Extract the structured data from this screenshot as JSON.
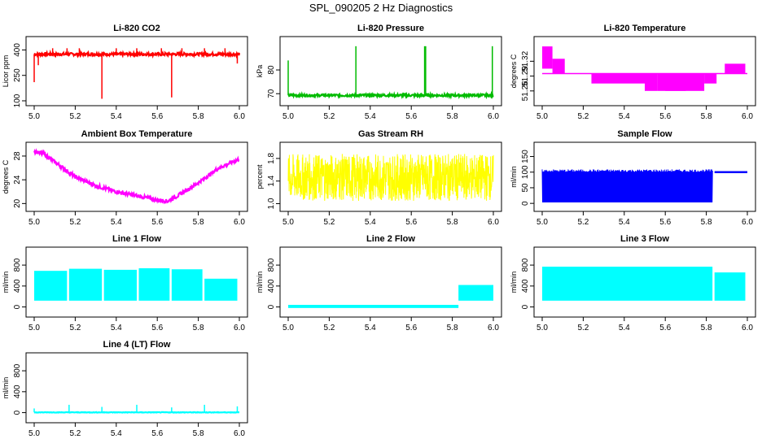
{
  "figure": {
    "title": "SPL_090205  2 Hz Diagnostics"
  },
  "chart_data": [
    {
      "type": "line",
      "title": "Li-820 CO2",
      "ylabel": "Licor ppm",
      "color": "#ff0000",
      "xlim": [
        5.0,
        6.0
      ],
      "ylim": [
        100,
        450
      ],
      "xticks": [
        "5.0",
        "5.2",
        "5.4",
        "5.6",
        "5.8",
        "6.0"
      ],
      "yticks": [
        {
          "v": 100,
          "label": "100"
        },
        {
          "v": 250,
          "label": "250"
        },
        {
          "v": 400,
          "label": "400"
        }
      ],
      "kind": "noise",
      "baseline": [
        [
          5.0,
          375
        ],
        [
          6.0,
          375
        ]
      ],
      "noise": 8,
      "spikes": [
        [
          5.0,
          210
        ],
        [
          5.02,
          310
        ],
        [
          5.09,
          410
        ],
        [
          5.16,
          410
        ],
        [
          5.22,
          410
        ],
        [
          5.33,
          112
        ],
        [
          5.4,
          410
        ],
        [
          5.5,
          410
        ],
        [
          5.62,
          410
        ],
        [
          5.67,
          120
        ],
        [
          5.72,
          410
        ],
        [
          5.83,
          410
        ],
        [
          5.93,
          410
        ],
        [
          5.99,
          320
        ]
      ]
    },
    {
      "type": "line",
      "title": "Li-820 Pressure",
      "ylabel": "kPa",
      "color": "#00bb00",
      "xlim": [
        5.0,
        6.0
      ],
      "ylim": [
        67,
        92
      ],
      "xticks": [
        "5.0",
        "5.2",
        "5.4",
        "5.6",
        "5.8",
        "6.0"
      ],
      "yticks": [
        {
          "v": 70,
          "label": "70"
        },
        {
          "v": 80,
          "label": "80"
        }
      ],
      "kind": "noise",
      "baseline": [
        [
          5.0,
          69.3
        ],
        [
          6.0,
          69.3
        ]
      ],
      "noise": 0.5,
      "spikes": [
        [
          5.0,
          84
        ],
        [
          5.33,
          90
        ],
        [
          5.665,
          90
        ],
        [
          5.67,
          90
        ],
        [
          5.995,
          90
        ]
      ]
    },
    {
      "type": "line",
      "title": "Li-820 Temperature",
      "ylabel": "degrees C",
      "color": "#ff00ff",
      "xlim": [
        5.0,
        6.0
      ],
      "ylim": [
        51.24,
        51.36
      ],
      "xticks": [
        "5.0",
        "5.2",
        "5.4",
        "5.6",
        "5.8",
        "6.0"
      ],
      "yticks": [
        {
          "v": 51.26,
          "label": "51.26"
        },
        {
          "v": 51.29,
          "label": "51.29"
        },
        {
          "v": 51.32,
          "label": "51.32"
        }
      ],
      "kind": "steps",
      "low": 51.295,
      "blocks": [
        [
          5.0,
          5.05,
          51.35,
          51.305
        ],
        [
          5.05,
          5.11,
          51.325,
          51.295
        ],
        [
          5.24,
          5.5,
          51.295,
          51.275
        ],
        [
          5.5,
          5.56,
          51.295,
          51.26
        ],
        [
          5.56,
          5.79,
          51.295,
          51.26
        ],
        [
          5.79,
          5.79,
          51.295,
          51.26
        ],
        [
          5.6,
          5.7,
          51.275,
          51.26
        ],
        [
          5.79,
          5.85,
          51.295,
          51.275
        ],
        [
          5.89,
          5.99,
          51.315,
          51.295
        ]
      ]
    },
    {
      "type": "line",
      "title": "Ambient Box Temperature",
      "ylabel": "degrees C",
      "color": "#ff00ff",
      "xlim": [
        5.0,
        6.0
      ],
      "ylim": [
        19.5,
        29.5
      ],
      "xticks": [
        "5.0",
        "5.2",
        "5.4",
        "5.6",
        "5.8",
        "6.0"
      ],
      "yticks": [
        {
          "v": 20,
          "label": "20"
        },
        {
          "v": 24,
          "label": "24"
        },
        {
          "v": 28,
          "label": "28"
        }
      ],
      "kind": "noise",
      "noise": 0.3,
      "baseline": [
        [
          5.0,
          28.8
        ],
        [
          5.05,
          28.3
        ],
        [
          5.1,
          27.0
        ],
        [
          5.2,
          24.5
        ],
        [
          5.3,
          23.0
        ],
        [
          5.4,
          22.0
        ],
        [
          5.5,
          21.3
        ],
        [
          5.6,
          20.6
        ],
        [
          5.65,
          20.4
        ],
        [
          5.7,
          21.3
        ],
        [
          5.8,
          23.5
        ],
        [
          5.9,
          26.0
        ],
        [
          6.0,
          27.5
        ]
      ]
    },
    {
      "type": "line",
      "title": "Gas Stream RH",
      "ylabel": "percent",
      "color": "#ffff00",
      "xlim": [
        5.0,
        6.0
      ],
      "ylim": [
        0.95,
        2.0
      ],
      "xticks": [
        "5.0",
        "5.2",
        "5.4",
        "5.6",
        "5.8",
        "6.0"
      ],
      "yticks": [
        {
          "v": 1.0,
          "label": "1.0"
        },
        {
          "v": 1.4,
          "label": "1.4"
        },
        {
          "v": 1.8,
          "label": "1.8"
        }
      ],
      "kind": "band",
      "low": 1.05,
      "high": 1.88
    },
    {
      "type": "line",
      "title": "Sample Flow",
      "ylabel": "ml/min",
      "color": "#0000ff",
      "xlim": [
        5.0,
        6.0
      ],
      "ylim": [
        -10,
        180
      ],
      "xticks": [
        "5.0",
        "5.2",
        "5.4",
        "5.6",
        "5.8",
        "6.0"
      ],
      "yticks": [
        {
          "v": 0,
          "label": "0"
        },
        {
          "v": 50,
          "label": "50"
        },
        {
          "v": 100,
          "label": "100"
        },
        {
          "v": 150,
          "label": "150"
        }
      ],
      "kind": "blocks",
      "upper": 105,
      "lower": 3,
      "block_end": 5.83,
      "tail": [
        [
          5.84,
          6.0,
          100
        ]
      ]
    },
    {
      "type": "line",
      "title": "Line 1 Flow",
      "ylabel": "ml/min",
      "color": "#00ffff",
      "xlim": [
        5.0,
        6.0
      ],
      "ylim": [
        -100,
        1050
      ],
      "xticks": [
        "5.0",
        "5.2",
        "5.4",
        "5.6",
        "5.8",
        "6.0"
      ],
      "yticks": [
        {
          "v": 0,
          "label": "0"
        },
        {
          "v": 400,
          "label": "400"
        },
        {
          "v": 800,
          "label": "800"
        }
      ],
      "kind": "segments",
      "lower": 120,
      "segments": [
        [
          5.0,
          5.16,
          690
        ],
        [
          5.17,
          5.33,
          730
        ],
        [
          5.34,
          5.5,
          710
        ],
        [
          5.51,
          5.66,
          740
        ],
        [
          5.67,
          5.82,
          720
        ],
        [
          5.83,
          5.99,
          540
        ]
      ]
    },
    {
      "type": "line",
      "title": "Line 2 Flow",
      "ylabel": "ml/min",
      "color": "#00ffff",
      "xlim": [
        5.0,
        6.0
      ],
      "ylim": [
        -100,
        1050
      ],
      "xticks": [
        "5.0",
        "5.2",
        "5.4",
        "5.6",
        "5.8",
        "6.0"
      ],
      "yticks": [
        {
          "v": 0,
          "label": "0"
        },
        {
          "v": 400,
          "label": "400"
        },
        {
          "v": 800,
          "label": "800"
        }
      ],
      "kind": "segments",
      "lower": -20,
      "segments": [
        [
          5.0,
          5.83,
          40
        ]
      ],
      "high": [
        [
          5.83,
          6.0,
          120,
          420
        ]
      ]
    },
    {
      "type": "line",
      "title": "Line 3 Flow",
      "ylabel": "ml/min",
      "color": "#00ffff",
      "xlim": [
        5.0,
        6.0
      ],
      "ylim": [
        -100,
        1050
      ],
      "xticks": [
        "5.0",
        "5.2",
        "5.4",
        "5.6",
        "5.8",
        "6.0"
      ],
      "yticks": [
        {
          "v": 0,
          "label": "0"
        },
        {
          "v": 400,
          "label": "400"
        },
        {
          "v": 800,
          "label": "800"
        }
      ],
      "kind": "segments",
      "lower": 120,
      "segments": [
        [
          5.0,
          5.83,
          770
        ],
        [
          5.84,
          5.99,
          660
        ]
      ]
    },
    {
      "type": "line",
      "title": "Line 4 (LT) Flow",
      "ylabel": "ml/min",
      "color": "#00ffff",
      "xlim": [
        5.0,
        6.0
      ],
      "ylim": [
        -100,
        1050
      ],
      "xticks": [
        "5.0",
        "5.2",
        "5.4",
        "5.6",
        "5.8",
        "6.0"
      ],
      "yticks": [
        {
          "v": 0,
          "label": "0"
        },
        {
          "v": 400,
          "label": "400"
        },
        {
          "v": 800,
          "label": "800"
        }
      ],
      "kind": "noise",
      "baseline": [
        [
          5.0,
          5
        ],
        [
          6.0,
          5
        ]
      ],
      "noise": 5,
      "spikes": [
        [
          5.0,
          80
        ],
        [
          5.17,
          150
        ],
        [
          5.33,
          110
        ],
        [
          5.5,
          150
        ],
        [
          5.67,
          100
        ],
        [
          5.83,
          150
        ],
        [
          5.99,
          120
        ]
      ]
    }
  ]
}
